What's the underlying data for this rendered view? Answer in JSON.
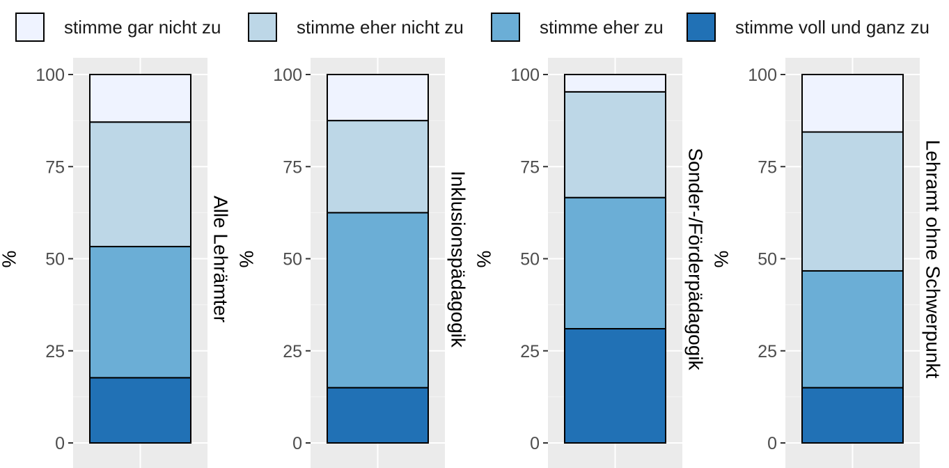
{
  "legend": {
    "items": [
      {
        "label": "stimme gar nicht zu",
        "color": "#eff3ff"
      },
      {
        "label": "stimme eher nicht zu",
        "color": "#bdd7e7"
      },
      {
        "label": "stimme eher zu",
        "color": "#6baed6"
      },
      {
        "label": "stimme voll und ganz zu",
        "color": "#2171b5"
      }
    ]
  },
  "chart_data": [
    {
      "type": "bar",
      "stacked": true,
      "title": "Alle Lehrämter",
      "ylabel": "%",
      "ylim": [
        0,
        100
      ],
      "yticks": [
        "0",
        "25",
        "50",
        "75",
        "100"
      ],
      "series": [
        {
          "name": "stimme voll und ganz zu",
          "values": [
            17.7
          ]
        },
        {
          "name": "stimme eher zu",
          "values": [
            35.6
          ]
        },
        {
          "name": "stimme eher nicht zu",
          "values": [
            33.8
          ]
        },
        {
          "name": "stimme gar nicht zu",
          "values": [
            12.9
          ]
        }
      ]
    },
    {
      "type": "bar",
      "stacked": true,
      "title": "Inklusionspädagogik",
      "ylabel": "%",
      "ylim": [
        0,
        100
      ],
      "yticks": [
        "0",
        "25",
        "50",
        "75",
        "100"
      ],
      "series": [
        {
          "name": "stimme voll und ganz zu",
          "values": [
            15.0
          ]
        },
        {
          "name": "stimme eher zu",
          "values": [
            47.5
          ]
        },
        {
          "name": "stimme eher nicht zu",
          "values": [
            25.0
          ]
        },
        {
          "name": "stimme gar nicht zu",
          "values": [
            12.5
          ]
        }
      ]
    },
    {
      "type": "bar",
      "stacked": true,
      "title": "Sonder-/Förderpädagogik",
      "ylabel": "%",
      "ylim": [
        0,
        100
      ],
      "yticks": [
        "0",
        "25",
        "50",
        "75",
        "100"
      ],
      "series": [
        {
          "name": "stimme voll und ganz zu",
          "values": [
            31.0
          ]
        },
        {
          "name": "stimme eher zu",
          "values": [
            35.6
          ]
        },
        {
          "name": "stimme eher nicht zu",
          "values": [
            28.7
          ]
        },
        {
          "name": "stimme gar nicht zu",
          "values": [
            4.7
          ]
        }
      ]
    },
    {
      "type": "bar",
      "stacked": true,
      "title": "Lehramt ohne Schwerpunkt",
      "ylabel": "%",
      "ylim": [
        0,
        100
      ],
      "yticks": [
        "0",
        "25",
        "50",
        "75",
        "100"
      ],
      "series": [
        {
          "name": "stimme voll und ganz zu",
          "values": [
            15.0
          ]
        },
        {
          "name": "stimme eher zu",
          "values": [
            31.7
          ]
        },
        {
          "name": "stimme eher nicht zu",
          "values": [
            37.7
          ]
        },
        {
          "name": "stimme gar nicht zu",
          "values": [
            15.6
          ]
        }
      ]
    }
  ]
}
